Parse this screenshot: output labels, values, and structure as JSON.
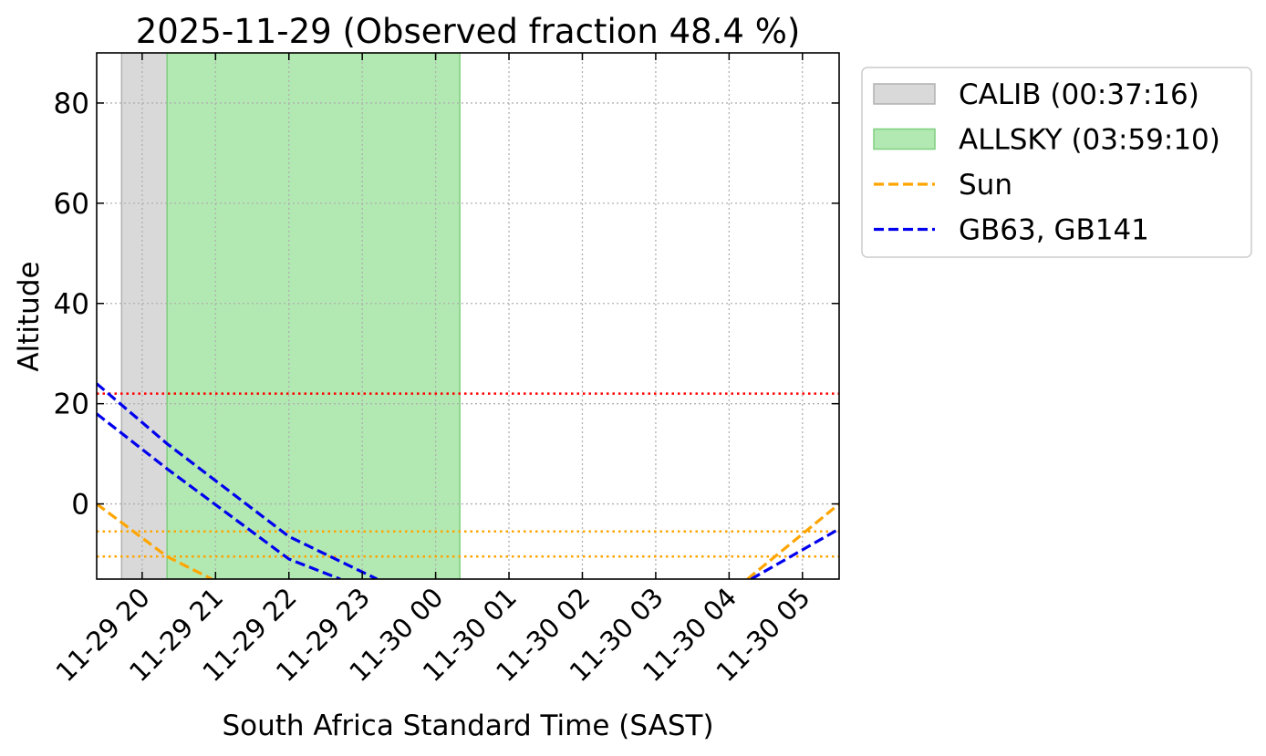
{
  "chart_data": {
    "type": "line",
    "title": "2025-11-29 (Observed fraction 48.4 %)",
    "xlabel": "South Africa Standard Time (SAST)",
    "ylabel": "Altitude",
    "x_unit": "hours since 2025-11-29 20:00 SAST",
    "xlim": [
      -0.62,
      9.5
    ],
    "ylim": [
      -15,
      90
    ],
    "grid": true,
    "legend_position": "outside-right",
    "x_ticks": [
      {
        "x": 0,
        "label": "11-29 20"
      },
      {
        "x": 1,
        "label": "11-29 21"
      },
      {
        "x": 2,
        "label": "11-29 22"
      },
      {
        "x": 3,
        "label": "11-29 23"
      },
      {
        "x": 4,
        "label": "11-30 00"
      },
      {
        "x": 5,
        "label": "11-30 01"
      },
      {
        "x": 6,
        "label": "11-30 02"
      },
      {
        "x": 7,
        "label": "11-30 03"
      },
      {
        "x": 8,
        "label": "11-30 04"
      },
      {
        "x": 9,
        "label": "11-30 05"
      }
    ],
    "y_ticks": [
      0,
      20,
      40,
      60,
      80
    ],
    "spans": [
      {
        "name": "CALIB (00:37:16)",
        "x0": -0.28,
        "x1": 0.34,
        "color": "#d9d9d9",
        "edge": "#b0b0b0"
      },
      {
        "name": "ALLSKY (03:59:10)",
        "x0": 0.34,
        "x1": 4.33,
        "color": "#b2e8b2",
        "edge": "#7fcf7f"
      }
    ],
    "hlines": [
      {
        "y": 22,
        "color": "#ff0000"
      },
      {
        "y": -5.5,
        "color": "#ffa500"
      },
      {
        "y": -10.5,
        "color": "#ffa500"
      }
    ],
    "series": [
      {
        "name": "Sun",
        "color": "#ffa500",
        "segments": [
          [
            [
              -0.62,
              0.0
            ],
            [
              0.34,
              -10.5
            ],
            [
              0.95,
              -15.0
            ]
          ],
          [
            [
              8.25,
              -15.0
            ],
            [
              9.5,
              0.0
            ]
          ]
        ]
      },
      {
        "name": "GB63, GB141",
        "color": "#0000ee",
        "segments": [
          [
            [
              -0.62,
              24.0
            ],
            [
              0.34,
              12.0
            ],
            [
              2.0,
              -6.5
            ],
            [
              3.2,
              -15.0
            ]
          ],
          [
            [
              -0.62,
              18.0
            ],
            [
              0.34,
              7.0
            ],
            [
              2.0,
              -11.0
            ],
            [
              2.7,
              -15.0
            ]
          ],
          [
            [
              8.3,
              -15.0
            ],
            [
              9.5,
              -5.0
            ]
          ]
        ]
      }
    ],
    "legend": [
      {
        "label": "CALIB (00:37:16)",
        "kind": "patch",
        "color": "#d9d9d9",
        "edge": "#b0b0b0"
      },
      {
        "label": "ALLSKY (03:59:10)",
        "kind": "patch",
        "color": "#b2e8b2",
        "edge": "#7fcf7f"
      },
      {
        "label": "Sun",
        "kind": "dashed-line",
        "color": "#ffa500"
      },
      {
        "label": "GB63, GB141",
        "kind": "dashed-line",
        "color": "#0000ee"
      }
    ]
  }
}
